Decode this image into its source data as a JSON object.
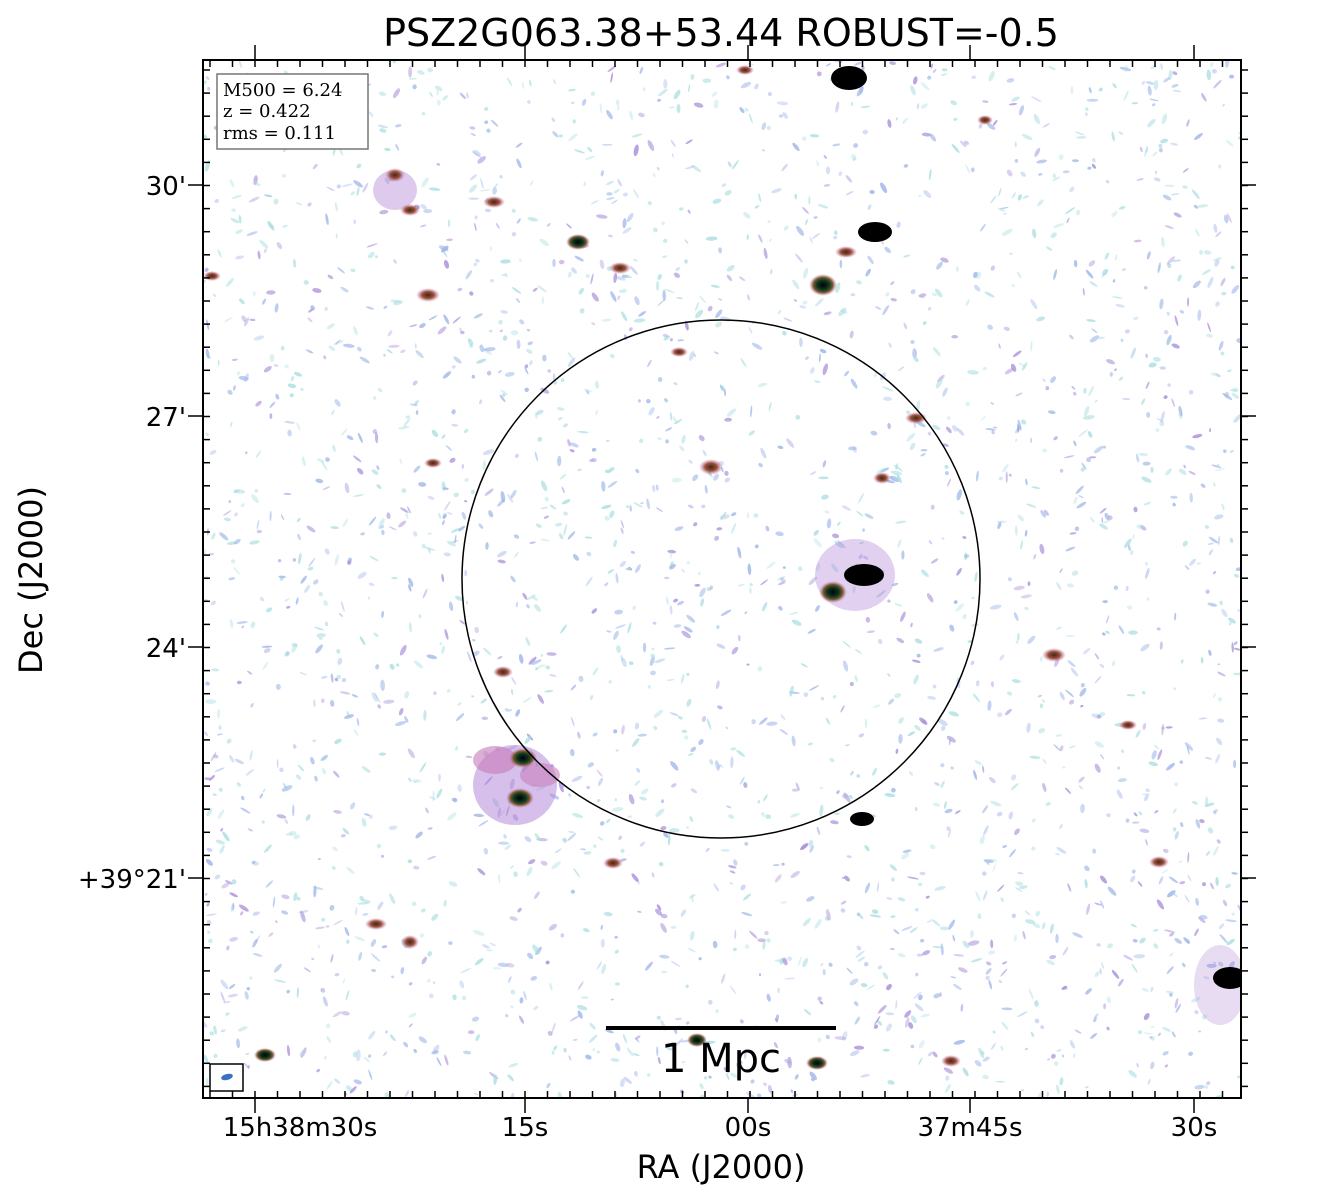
{
  "figure": {
    "title": "PSZ2G063.38+53.44 ROBUST=-0.5",
    "xlabel": "RA (J2000)",
    "ylabel": "Dec (J2000)"
  },
  "info_box": {
    "lines": [
      "M500 = 6.24",
      "z = 0.422",
      "rms = 0.111"
    ]
  },
  "scale_bar": {
    "label": "1 Mpc"
  },
  "x_ticks": [
    "15h38m30s",
    "15s",
    "00s",
    "37m45s",
    "30s"
  ],
  "y_ticks": [
    "30'",
    "27'",
    "24'",
    "+39°21'"
  ],
  "colors": {
    "noise_blue": "#9bb3e8",
    "noise_cyan": "#a8dde0",
    "noise_purple": "#a58ad8",
    "source_pink": "#c77ab8",
    "source_core": "#000000",
    "beam": "#3a6fc4"
  }
}
